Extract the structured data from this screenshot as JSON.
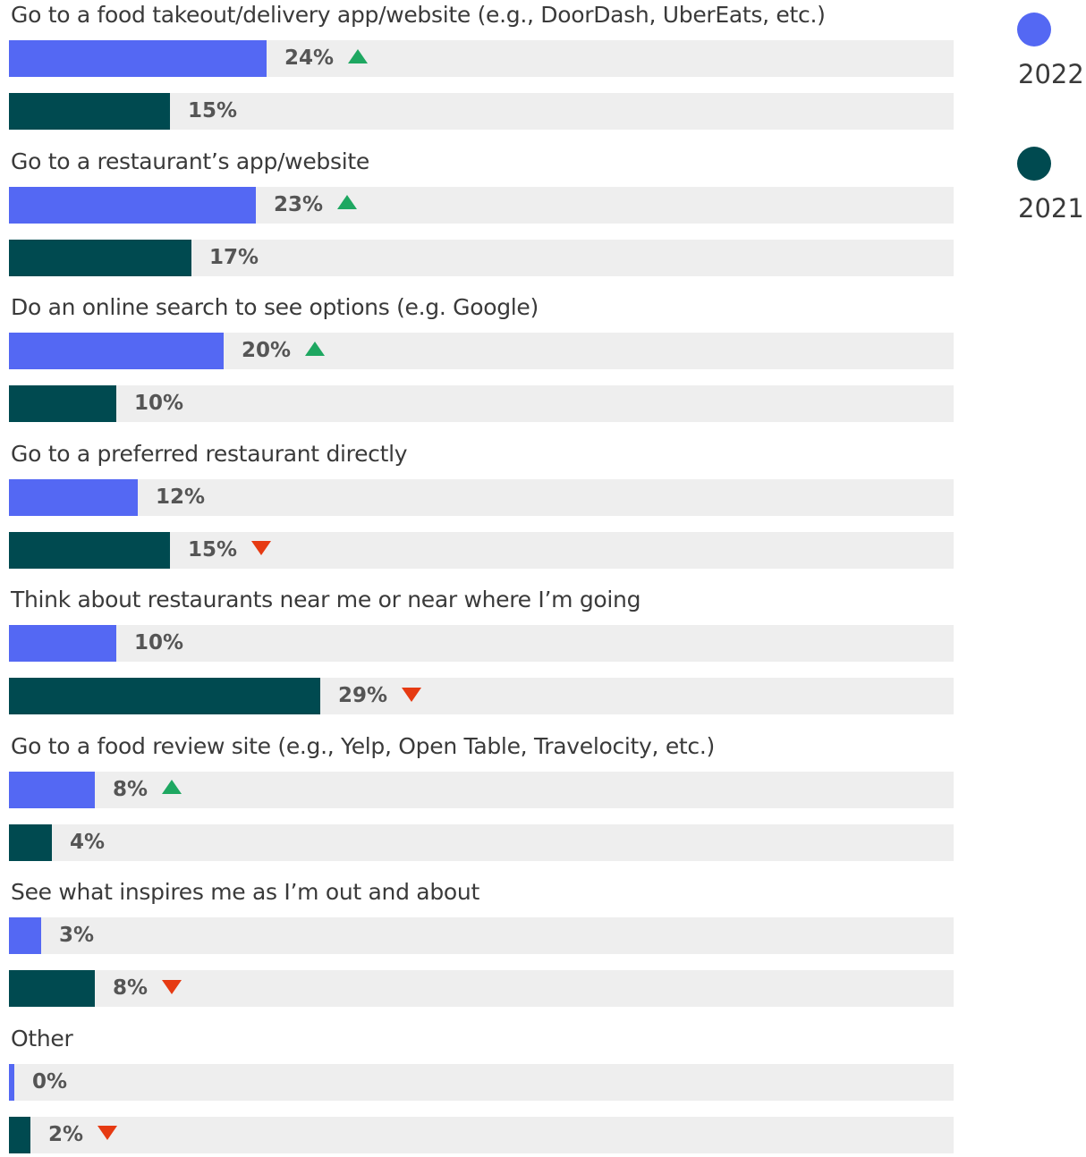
{
  "chart_data": {
    "type": "bar",
    "orientation": "horizontal",
    "legend": {
      "placement": "top-right"
    },
    "series_style": {
      "2022": "#5468f3",
      "2021": "#004a50"
    },
    "trend_colors": {
      "up": "#1ea761",
      "down": "#e63a12"
    },
    "xlim": [
      0,
      100
    ],
    "series": [
      {
        "name": "2022",
        "color": "#5468f3"
      },
      {
        "name": "2021",
        "color": "#004a50"
      }
    ],
    "categories": [
      {
        "label": "Go to a food takeout/delivery app/website (e.g., DoorDash, UberEats, etc.)",
        "values": [
          {
            "series": "2022",
            "value": 24,
            "label": "24%",
            "trend": "up"
          },
          {
            "series": "2021",
            "value": 15,
            "label": "15%",
            "trend": ""
          }
        ]
      },
      {
        "label": "Go to a restaurant’s app/website",
        "values": [
          {
            "series": "2022",
            "value": 23,
            "label": "23%",
            "trend": "up"
          },
          {
            "series": "2021",
            "value": 17,
            "label": "17%",
            "trend": ""
          }
        ]
      },
      {
        "label": "Do an online search to see options (e.g. Google)",
        "values": [
          {
            "series": "2022",
            "value": 20,
            "label": "20%",
            "trend": "up"
          },
          {
            "series": "2021",
            "value": 10,
            "label": "10%",
            "trend": ""
          }
        ]
      },
      {
        "label": "Go to a preferred restaurant directly",
        "values": [
          {
            "series": "2022",
            "value": 12,
            "label": "12%",
            "trend": ""
          },
          {
            "series": "2021",
            "value": 15,
            "label": "15%",
            "trend": "down"
          }
        ]
      },
      {
        "label": "Think about restaurants near me or near where I’m going",
        "values": [
          {
            "series": "2022",
            "value": 10,
            "label": "10%",
            "trend": ""
          },
          {
            "series": "2021",
            "value": 29,
            "label": "29%",
            "trend": "down"
          }
        ]
      },
      {
        "label": "Go to a food review site (e.g., Yelp, Open Table, Travelocity, etc.)",
        "values": [
          {
            "series": "2022",
            "value": 8,
            "label": "8%",
            "trend": "up"
          },
          {
            "series": "2021",
            "value": 4,
            "label": "4%",
            "trend": ""
          }
        ]
      },
      {
        "label": "See what inspires me as I’m out and about",
        "values": [
          {
            "series": "2022",
            "value": 3,
            "label": "3%",
            "trend": ""
          },
          {
            "series": "2021",
            "value": 8,
            "label": "8%",
            "trend": "down"
          }
        ]
      },
      {
        "label": "Other",
        "values": [
          {
            "series": "2022",
            "value": 0,
            "label": "0%",
            "trend": ""
          },
          {
            "series": "2021",
            "value": 2,
            "label": "2%",
            "trend": "down"
          }
        ]
      }
    ]
  }
}
